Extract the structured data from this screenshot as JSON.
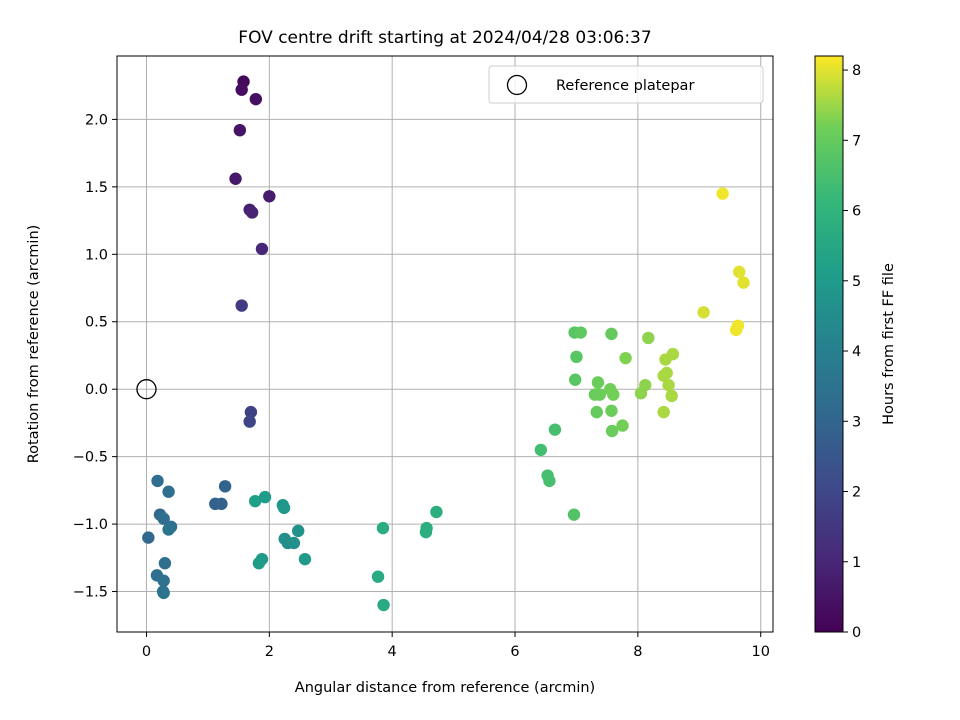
{
  "chart_data": {
    "type": "scatter",
    "title": "FOV centre drift starting at 2024/04/28 03:06:37",
    "xlabel": "Angular distance from reference (arcmin)",
    "ylabel": "Rotation from reference (arcmin)",
    "xlim": [
      -0.48,
      10.2
    ],
    "ylim": [
      -1.8,
      2.47
    ],
    "xticks": [
      0,
      2,
      4,
      6,
      8,
      10
    ],
    "yticks": [
      -1.5,
      -1.0,
      -0.5,
      0.0,
      0.5,
      1.0,
      1.5,
      2.0
    ],
    "xtick_labels": [
      "0",
      "2",
      "4",
      "6",
      "8",
      "10"
    ],
    "ytick_labels": [
      "−1.5",
      "−1.0",
      "−0.5",
      "0.0",
      "0.5",
      "1.0",
      "1.5",
      "2.0"
    ],
    "grid": true,
    "legend": {
      "placement": "top-right",
      "entries": [
        "Reference platepar"
      ]
    },
    "reference_point": {
      "x": 0.0,
      "y": 0.0,
      "marker": "open-circle"
    },
    "colorbar": {
      "label": "Hours from first FF file",
      "colormap": "viridis",
      "range": [
        0,
        8.2
      ],
      "ticks": [
        0,
        1,
        2,
        3,
        4,
        5,
        6,
        7,
        8
      ],
      "tick_labels": [
        "0",
        "1",
        "2",
        "3",
        "4",
        "5",
        "6",
        "7",
        "8"
      ]
    },
    "points": [
      {
        "x": 1.58,
        "y": 2.28,
        "c": 0.2
      },
      {
        "x": 1.55,
        "y": 2.22,
        "c": 0.3
      },
      {
        "x": 1.78,
        "y": 2.15,
        "c": 0.4
      },
      {
        "x": 1.52,
        "y": 1.92,
        "c": 0.5
      },
      {
        "x": 1.45,
        "y": 1.56,
        "c": 0.6
      },
      {
        "x": 2.0,
        "y": 1.43,
        "c": 0.7
      },
      {
        "x": 1.68,
        "y": 1.33,
        "c": 0.8
      },
      {
        "x": 1.72,
        "y": 1.31,
        "c": 0.9
      },
      {
        "x": 1.88,
        "y": 1.04,
        "c": 1.0
      },
      {
        "x": 1.55,
        "y": 0.62,
        "c": 1.6
      },
      {
        "x": 1.7,
        "y": -0.17,
        "c": 1.8
      },
      {
        "x": 1.68,
        "y": -0.24,
        "c": 1.9
      },
      {
        "x": 0.18,
        "y": -0.68,
        "c": 3.3
      },
      {
        "x": 0.36,
        "y": -0.76,
        "c": 3.4
      },
      {
        "x": 0.22,
        "y": -0.93,
        "c": 3.2
      },
      {
        "x": 0.28,
        "y": -0.96,
        "c": 3.3
      },
      {
        "x": 0.4,
        "y": -1.02,
        "c": 3.4
      },
      {
        "x": 0.36,
        "y": -1.04,
        "c": 3.5
      },
      {
        "x": 0.03,
        "y": -1.1,
        "c": 3.1
      },
      {
        "x": 0.3,
        "y": -1.29,
        "c": 3.4
      },
      {
        "x": 0.17,
        "y": -1.38,
        "c": 3.3
      },
      {
        "x": 0.28,
        "y": -1.42,
        "c": 3.4
      },
      {
        "x": 0.27,
        "y": -1.5,
        "c": 3.5
      },
      {
        "x": 0.28,
        "y": -1.51,
        "c": 3.5
      },
      {
        "x": 1.28,
        "y": -0.72,
        "c": 2.9
      },
      {
        "x": 1.12,
        "y": -0.85,
        "c": 2.8
      },
      {
        "x": 1.22,
        "y": -0.85,
        "c": 2.9
      },
      {
        "x": 1.77,
        "y": -0.83,
        "c": 5.2
      },
      {
        "x": 1.93,
        "y": -0.8,
        "c": 5.1
      },
      {
        "x": 2.22,
        "y": -0.86,
        "c": 4.8
      },
      {
        "x": 2.24,
        "y": -0.88,
        "c": 4.9
      },
      {
        "x": 2.25,
        "y": -1.11,
        "c": 4.6
      },
      {
        "x": 2.3,
        "y": -1.14,
        "c": 4.5
      },
      {
        "x": 2.4,
        "y": -1.14,
        "c": 4.6
      },
      {
        "x": 2.47,
        "y": -1.05,
        "c": 4.7
      },
      {
        "x": 1.88,
        "y": -1.26,
        "c": 5.0
      },
      {
        "x": 1.83,
        "y": -1.29,
        "c": 5.1
      },
      {
        "x": 2.58,
        "y": -1.26,
        "c": 5.0
      },
      {
        "x": 3.85,
        "y": -1.03,
        "c": 5.7
      },
      {
        "x": 3.77,
        "y": -1.39,
        "c": 5.6
      },
      {
        "x": 3.86,
        "y": -1.6,
        "c": 5.6
      },
      {
        "x": 4.56,
        "y": -1.03,
        "c": 5.8
      },
      {
        "x": 4.55,
        "y": -1.06,
        "c": 5.8
      },
      {
        "x": 4.72,
        "y": -0.91,
        "c": 5.8
      },
      {
        "x": 6.42,
        "y": -0.45,
        "c": 6.4
      },
      {
        "x": 6.53,
        "y": -0.64,
        "c": 6.5
      },
      {
        "x": 6.56,
        "y": -0.68,
        "c": 6.5
      },
      {
        "x": 6.65,
        "y": -0.3,
        "c": 6.5
      },
      {
        "x": 6.97,
        "y": 0.42,
        "c": 6.8
      },
      {
        "x": 7.07,
        "y": 0.42,
        "c": 6.9
      },
      {
        "x": 7.0,
        "y": 0.24,
        "c": 6.8
      },
      {
        "x": 6.98,
        "y": 0.07,
        "c": 6.8
      },
      {
        "x": 6.96,
        "y": -0.93,
        "c": 6.7
      },
      {
        "x": 7.35,
        "y": 0.05,
        "c": 7.1
      },
      {
        "x": 7.3,
        "y": -0.04,
        "c": 7.1
      },
      {
        "x": 7.38,
        "y": -0.04,
        "c": 7.1
      },
      {
        "x": 7.33,
        "y": -0.17,
        "c": 7.0
      },
      {
        "x": 7.55,
        "y": 0.0,
        "c": 7.2
      },
      {
        "x": 7.6,
        "y": -0.04,
        "c": 7.2
      },
      {
        "x": 7.57,
        "y": -0.16,
        "c": 7.1
      },
      {
        "x": 7.58,
        "y": -0.31,
        "c": 7.1
      },
      {
        "x": 7.57,
        "y": 0.41,
        "c": 7.0
      },
      {
        "x": 7.75,
        "y": -0.27,
        "c": 7.2
      },
      {
        "x": 7.8,
        "y": 0.23,
        "c": 7.3
      },
      {
        "x": 8.17,
        "y": 0.38,
        "c": 7.4
      },
      {
        "x": 8.05,
        "y": -0.03,
        "c": 7.4
      },
      {
        "x": 8.12,
        "y": 0.03,
        "c": 7.4
      },
      {
        "x": 8.42,
        "y": 0.1,
        "c": 7.6
      },
      {
        "x": 8.47,
        "y": 0.12,
        "c": 7.6
      },
      {
        "x": 8.45,
        "y": 0.22,
        "c": 7.6
      },
      {
        "x": 8.57,
        "y": 0.26,
        "c": 7.6
      },
      {
        "x": 8.5,
        "y": 0.03,
        "c": 7.6
      },
      {
        "x": 8.55,
        "y": -0.05,
        "c": 7.6
      },
      {
        "x": 8.42,
        "y": -0.17,
        "c": 7.6
      },
      {
        "x": 9.07,
        "y": 0.57,
        "c": 7.9
      },
      {
        "x": 9.38,
        "y": 1.45,
        "c": 8.1
      },
      {
        "x": 9.65,
        "y": 0.87,
        "c": 8.0
      },
      {
        "x": 9.72,
        "y": 0.79,
        "c": 8.0
      },
      {
        "x": 9.63,
        "y": 0.47,
        "c": 8.1
      },
      {
        "x": 9.6,
        "y": 0.44,
        "c": 8.1
      }
    ]
  }
}
